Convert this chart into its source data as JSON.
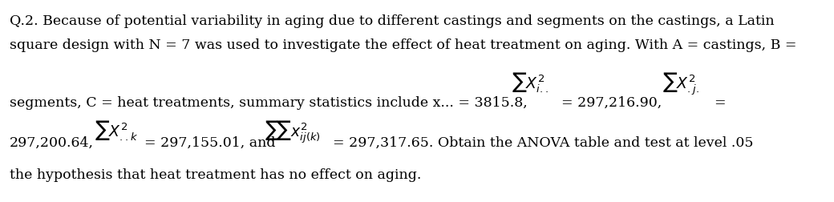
{
  "figsize": [
    10.4,
    2.52
  ],
  "dpi": 100,
  "bg_color": "#ffffff",
  "fs": 12.5,
  "mfs": 13.5,
  "line1": "Q.2. Because of potential variability in aging due to different castings and segments on the castings, a Latin",
  "line2": "square design with N = 7 was used to investigate the effect of heat treatment on aging. With A = castings, B =",
  "line3_left": "segments, C = heat treatments, summary statistics include x... = 3815.8,",
  "line3_val_i": "= 297,216.90,",
  "line3_eq": "=",
  "line4_left": "297,200.64,",
  "line4_mid": "= 297,155.01, and",
  "line4_right": "= 297,317.65. Obtain the ANOVA table and test at level .05",
  "line5": "the hypothesis that heat treatment has no effect on aging."
}
